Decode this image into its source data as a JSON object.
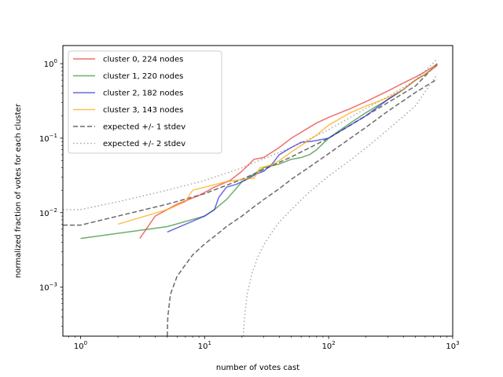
{
  "chart_data": {
    "type": "line",
    "title": "",
    "xlabel": "number of votes cast",
    "ylabel": "normalized fraction of votes for each cluster",
    "xscale": "log",
    "yscale": "log",
    "xlim": [
      0.72,
      1000
    ],
    "ylim": [
      0.00022,
      1.75
    ],
    "x_ticks": [
      {
        "value": 1,
        "base": "10",
        "exp": "0"
      },
      {
        "value": 10,
        "base": "10",
        "exp": "1"
      },
      {
        "value": 100,
        "base": "10",
        "exp": "2"
      },
      {
        "value": 1000,
        "base": "10",
        "exp": "3"
      }
    ],
    "y_ticks": [
      {
        "value": 0.001,
        "base": "10",
        "exp": "−3"
      },
      {
        "value": 0.01,
        "base": "10",
        "exp": "−2"
      },
      {
        "value": 0.1,
        "base": "10",
        "exp": "−1"
      },
      {
        "value": 1,
        "base": "10",
        "exp": "0"
      }
    ],
    "legend_position": "top-left",
    "series": [
      {
        "name": "cluster 0, 224 nodes",
        "color": "#e8322f",
        "style": "solid",
        "x": [
          3,
          4,
          6,
          9,
          12,
          16,
          20,
          25,
          30,
          40,
          50,
          60,
          70,
          80,
          100,
          150,
          200,
          300,
          400,
          500,
          600,
          750
        ],
        "y": [
          0.0045,
          0.009,
          0.013,
          0.017,
          0.022,
          0.027,
          0.036,
          0.052,
          0.055,
          0.075,
          0.1,
          0.12,
          0.14,
          0.16,
          0.19,
          0.25,
          0.31,
          0.43,
          0.55,
          0.66,
          0.78,
          0.98
        ]
      },
      {
        "name": "cluster 1, 220 nodes",
        "color": "#2e8b2e",
        "style": "solid",
        "x": [
          1,
          5,
          10,
          12,
          15,
          17,
          20,
          25,
          30,
          40,
          50,
          60,
          70,
          80,
          100,
          150,
          200,
          300,
          400,
          500,
          600,
          750
        ],
        "y": [
          0.0045,
          0.0065,
          0.009,
          0.011,
          0.015,
          0.019,
          0.026,
          0.033,
          0.04,
          0.045,
          0.052,
          0.055,
          0.06,
          0.07,
          0.1,
          0.16,
          0.22,
          0.33,
          0.45,
          0.6,
          0.72,
          0.95
        ]
      },
      {
        "name": "cluster 2, 182 nodes",
        "color": "#2a2ad6",
        "style": "solid",
        "x": [
          5,
          10,
          12,
          13,
          15,
          18,
          22,
          26,
          30,
          35,
          40,
          50,
          60,
          70,
          80,
          100,
          150,
          200,
          300,
          400,
          500,
          600,
          750
        ],
        "y": [
          0.0055,
          0.009,
          0.011,
          0.016,
          0.022,
          0.024,
          0.028,
          0.033,
          0.036,
          0.045,
          0.06,
          0.075,
          0.088,
          0.09,
          0.093,
          0.1,
          0.15,
          0.2,
          0.33,
          0.45,
          0.6,
          0.72,
          0.95
        ]
      },
      {
        "name": "cluster 3, 143 nodes",
        "color": "#ffa500",
        "style": "solid",
        "x": [
          2,
          5,
          7,
          8,
          10,
          15,
          20,
          25,
          28,
          35,
          40,
          50,
          60,
          80,
          100,
          150,
          200,
          300,
          400,
          500,
          600,
          750
        ],
        "y": [
          0.007,
          0.011,
          0.014,
          0.02,
          0.022,
          0.026,
          0.028,
          0.029,
          0.04,
          0.044,
          0.05,
          0.065,
          0.08,
          0.11,
          0.15,
          0.22,
          0.27,
          0.35,
          0.45,
          0.6,
          0.72,
          0.95
        ]
      },
      {
        "name": "expected +/- 1 stdev",
        "color": "#6a6a6a",
        "style": "dashed",
        "upper": {
          "x": [
            0.72,
            1,
            2,
            5,
            10,
            20,
            30,
            50,
            100,
            200,
            300,
            500,
            750
          ],
          "y": [
            0.0068,
            0.0068,
            0.009,
            0.013,
            0.018,
            0.028,
            0.038,
            0.056,
            0.1,
            0.2,
            0.3,
            0.5,
            1.0
          ]
        },
        "lower": {
          "x": [
            5,
            5.05,
            5.3,
            6,
            7,
            8,
            10,
            12,
            15,
            20,
            25,
            30,
            40,
            50,
            70,
            100,
            150,
            200,
            300,
            500,
            750
          ],
          "y": [
            0.00022,
            0.0004,
            0.0008,
            0.0014,
            0.002,
            0.0027,
            0.0038,
            0.0048,
            0.0065,
            0.009,
            0.012,
            0.015,
            0.021,
            0.028,
            0.041,
            0.062,
            0.1,
            0.14,
            0.23,
            0.41,
            0.62
          ]
        }
      },
      {
        "name": "expected +/- 2 stdev",
        "color": "#a8a8a8",
        "style": "dotted",
        "upper": {
          "x": [
            0.72,
            1,
            2,
            5,
            10,
            20,
            30,
            50,
            100,
            200,
            300,
            500,
            750
          ],
          "y": [
            0.011,
            0.011,
            0.014,
            0.02,
            0.027,
            0.04,
            0.053,
            0.075,
            0.13,
            0.25,
            0.36,
            0.6,
            1.15
          ]
        },
        "lower": {
          "x": [
            20.5,
            21,
            22,
            24,
            27,
            30,
            35,
            40,
            50,
            70,
            100,
            150,
            200,
            300,
            500,
            750
          ],
          "y": [
            0.00022,
            0.0004,
            0.0008,
            0.0015,
            0.0026,
            0.0037,
            0.0055,
            0.0075,
            0.011,
            0.019,
            0.031,
            0.051,
            0.074,
            0.13,
            0.27,
            0.72
          ]
        }
      }
    ]
  }
}
